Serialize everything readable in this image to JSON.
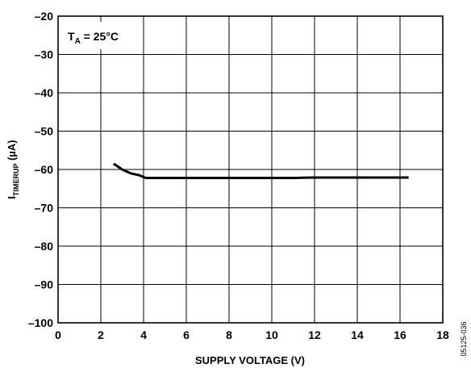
{
  "chart_data": {
    "type": "line",
    "xlabel": "SUPPLY VOLTAGE (V)",
    "ylabel": {
      "main": "I",
      "sub": "TIMERUP",
      "unit": " (µA)"
    },
    "xlim": [
      0,
      18
    ],
    "ylim": [
      -100,
      -20
    ],
    "x_ticks": [
      0,
      2,
      4,
      6,
      8,
      10,
      12,
      14,
      16,
      18
    ],
    "y_ticks": [
      -20,
      -30,
      -40,
      -50,
      -60,
      -70,
      -80,
      -90,
      -100
    ],
    "x_tick_labels": [
      "0",
      "2",
      "4",
      "6",
      "8",
      "10",
      "12",
      "14",
      "16",
      "18"
    ],
    "y_tick_labels": [
      "–20",
      "–30",
      "–40",
      "–50",
      "–60",
      "–70",
      "–80",
      "–90",
      "–100"
    ],
    "grid": true,
    "annotation": {
      "main": "T",
      "sub": "A",
      "rest": " = 25°C"
    },
    "figure_code": "05125-036",
    "series": [
      {
        "x": [
          2.6,
          3.0,
          3.4,
          3.8,
          4.1,
          4.5,
          6,
          8,
          10,
          11,
          12,
          14,
          16,
          16.4
        ],
        "values": [
          -58.5,
          -60.0,
          -61.0,
          -61.5,
          -62.2,
          -62.2,
          -62.2,
          -62.2,
          -62.2,
          -62.2,
          -62.1,
          -62.1,
          -62.1,
          -62.1
        ]
      }
    ],
    "line_color": "#000000"
  }
}
